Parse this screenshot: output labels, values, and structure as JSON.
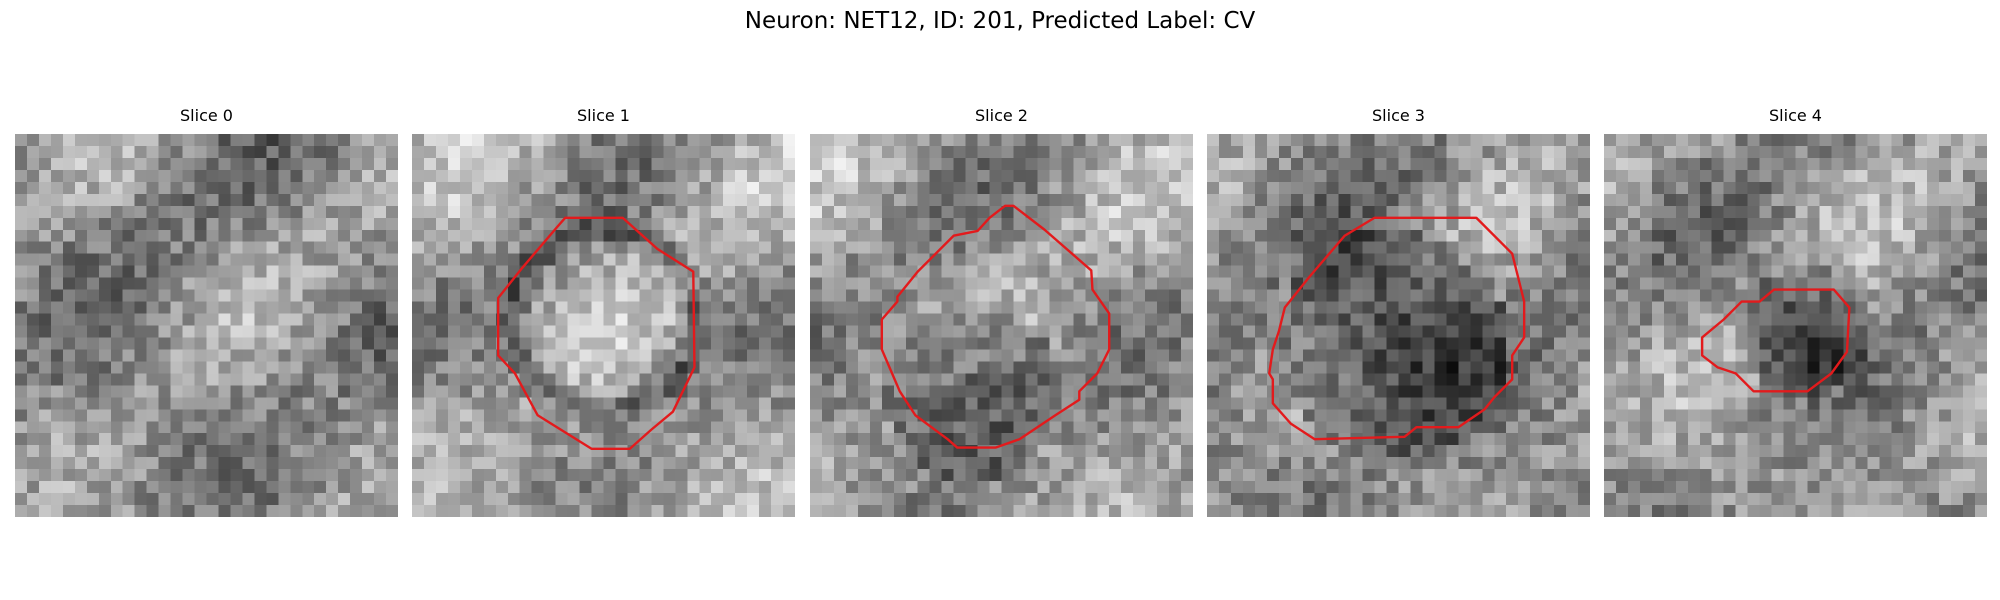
{
  "title": "Neuron: NET12, ID: 201, Predicted Label: CV",
  "grid_size": 32,
  "contour_color": "#e31a1c",
  "panels": [
    {
      "label": "Slice 0",
      "base_brightness": 0.55,
      "dark_blob": null,
      "contour": []
    },
    {
      "label": "Slice 1",
      "base_brightness": 0.62,
      "dark_blob": {
        "cx": 16,
        "cy": 15.5,
        "r": 8.5,
        "strength": 0.25,
        "ring": true
      },
      "contour": [
        [
          12.8,
          7.0
        ],
        [
          17.6,
          7.0
        ],
        [
          20.5,
          9.6
        ],
        [
          23.5,
          11.5
        ],
        [
          23.6,
          19.5
        ],
        [
          21.8,
          23.2
        ],
        [
          20.0,
          24.7
        ],
        [
          18.2,
          26.3
        ],
        [
          15.0,
          26.3
        ],
        [
          10.5,
          23.5
        ],
        [
          8.6,
          20.0
        ],
        [
          7.2,
          18.5
        ],
        [
          7.2,
          13.7
        ],
        [
          9.2,
          11.2
        ],
        [
          12.1,
          7.8
        ]
      ]
    },
    {
      "label": "Slice 2",
      "base_brightness": 0.6,
      "dark_blob": {
        "cx": 13.5,
        "cy": 21.5,
        "r": 7.5,
        "strength": 0.35,
        "ring": false
      },
      "contour": [
        [
          16.3,
          6.0
        ],
        [
          17.0,
          6.0
        ],
        [
          19.6,
          8.0
        ],
        [
          23.5,
          11.4
        ],
        [
          23.6,
          13.0
        ],
        [
          25.0,
          15.0
        ],
        [
          25.0,
          18.0
        ],
        [
          24.0,
          20.0
        ],
        [
          22.5,
          21.5
        ],
        [
          22.5,
          22.2
        ],
        [
          20.5,
          23.5
        ],
        [
          17.5,
          25.5
        ],
        [
          15.5,
          26.2
        ],
        [
          12.3,
          26.2
        ],
        [
          11.5,
          25.5
        ],
        [
          8.8,
          23.5
        ],
        [
          7.5,
          21.5
        ],
        [
          6.0,
          18.0
        ],
        [
          6.0,
          15.5
        ],
        [
          7.3,
          14.0
        ],
        [
          7.3,
          13.6
        ],
        [
          9.0,
          11.5
        ],
        [
          12.0,
          8.5
        ],
        [
          14.0,
          8.1
        ],
        [
          15.0,
          7.0
        ]
      ]
    },
    {
      "label": "Slice 3",
      "base_brightness": 0.55,
      "dark_blob": {
        "cx": 15.5,
        "cy": 17.5,
        "r": 9.5,
        "strength": 0.35,
        "ring": false
      },
      "contour": [
        [
          14.0,
          7.0
        ],
        [
          22.5,
          7.0
        ],
        [
          25.5,
          10.0
        ],
        [
          26.5,
          14.0
        ],
        [
          26.5,
          17.0
        ],
        [
          25.5,
          18.5
        ],
        [
          25.5,
          20.5
        ],
        [
          24.0,
          22.0
        ],
        [
          23.2,
          23.0
        ],
        [
          21.0,
          24.5
        ],
        [
          17.5,
          24.5
        ],
        [
          16.5,
          25.3
        ],
        [
          9.0,
          25.5
        ],
        [
          7.0,
          24.2
        ],
        [
          5.5,
          22.5
        ],
        [
          5.5,
          20.5
        ],
        [
          5.2,
          20.0
        ],
        [
          5.5,
          18.0
        ],
        [
          6.0,
          16.5
        ],
        [
          6.5,
          14.5
        ],
        [
          8.5,
          12.0
        ],
        [
          11.5,
          8.5
        ]
      ]
    },
    {
      "label": "Slice 4",
      "base_brightness": 0.58,
      "dark_blob": {
        "cx": 17.0,
        "cy": 16.5,
        "r": 5.5,
        "strength": 0.4,
        "ring": false
      },
      "contour": [
        [
          14.2,
          13.0
        ],
        [
          19.2,
          13.0
        ],
        [
          20.5,
          14.5
        ],
        [
          20.3,
          18.2
        ],
        [
          19.0,
          20.0
        ],
        [
          17.0,
          21.5
        ],
        [
          12.5,
          21.5
        ],
        [
          11.0,
          20.0
        ],
        [
          9.5,
          19.5
        ],
        [
          8.2,
          18.5
        ],
        [
          8.2,
          17.0
        ],
        [
          10.0,
          15.5
        ],
        [
          11.5,
          14.0
        ],
        [
          13.0,
          14.0
        ]
      ]
    }
  ]
}
